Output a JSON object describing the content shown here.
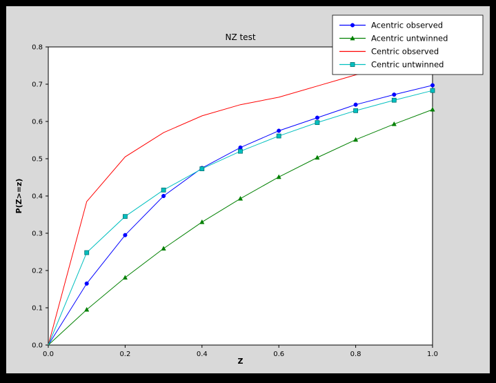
{
  "figure": {
    "outer_background": "#000000",
    "figure_background": "#d9d9d9",
    "axes_background": "#ffffff",
    "axes_edge_color": "#000000",
    "tick_color": "#000000",
    "text_color": "#000000"
  },
  "chart_data": {
    "type": "line",
    "title": "NZ test",
    "xlabel": "Z",
    "ylabel": "P(Z>=z)",
    "xlim": [
      0.0,
      1.0
    ],
    "ylim": [
      0.0,
      0.8
    ],
    "xticks": [
      0.0,
      0.2,
      0.4,
      0.6,
      0.8,
      1.0
    ],
    "xtick_labels": [
      "0.0",
      "0.2",
      "0.4",
      "0.6",
      "0.8",
      "1.0"
    ],
    "yticks": [
      0.0,
      0.1,
      0.2,
      0.3,
      0.4,
      0.5,
      0.6,
      0.7,
      0.8
    ],
    "ytick_labels": [
      "0.0",
      "0.1",
      "0.2",
      "0.3",
      "0.4",
      "0.5",
      "0.6",
      "0.7",
      "0.8"
    ],
    "grid": false,
    "legend_position": "upper right",
    "x": [
      0.0,
      0.1,
      0.2,
      0.3,
      0.4,
      0.5,
      0.6,
      0.7,
      0.8,
      0.9,
      1.0
    ],
    "series": [
      {
        "name": "Acentric observed",
        "color": "#0000ff",
        "marker": "circle",
        "values": [
          0.0,
          0.165,
          0.295,
          0.4,
          0.475,
          0.53,
          0.575,
          0.61,
          0.645,
          0.672,
          0.697
        ]
      },
      {
        "name": "Acentric untwinned",
        "color": "#008000",
        "marker": "triangle",
        "values": [
          0.0,
          0.095,
          0.181,
          0.259,
          0.33,
          0.393,
          0.451,
          0.503,
          0.551,
          0.593,
          0.632
        ]
      },
      {
        "name": "Centric observed",
        "color": "#ff0000",
        "marker": "none",
        "values": [
          0.0,
          0.385,
          0.505,
          0.57,
          0.615,
          0.645,
          0.665,
          0.695,
          0.725,
          0.748,
          0.758
        ]
      },
      {
        "name": "Centric untwinned",
        "color": "#00bfbf",
        "marker": "square",
        "values": [
          0.0,
          0.248,
          0.345,
          0.416,
          0.473,
          0.52,
          0.561,
          0.597,
          0.629,
          0.657,
          0.683
        ]
      }
    ]
  }
}
